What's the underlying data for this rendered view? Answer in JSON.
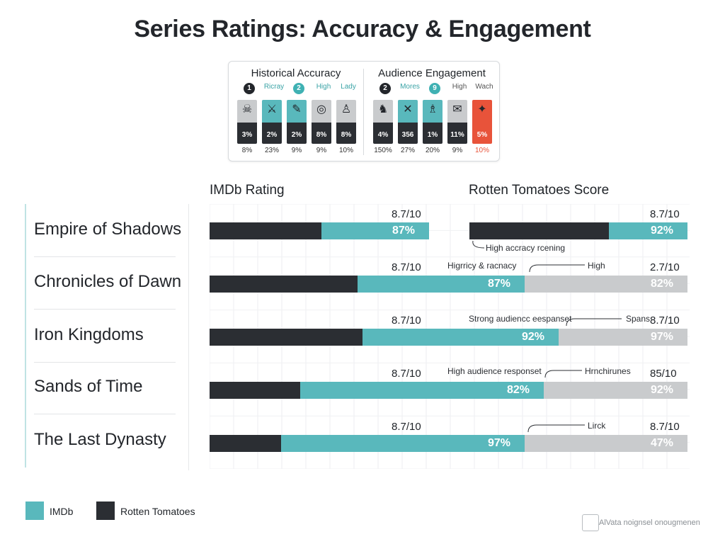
{
  "title": "Series Ratings: Accuracy & Engagement",
  "panel": {
    "groups": [
      {
        "title": "Historical Accuracy",
        "items": [
          {
            "header": "1",
            "header_style": "badge-dark",
            "icon": "mask-icon",
            "glyph": "☠",
            "tile_color": "#c9cbcd",
            "value": "3%",
            "sub": "8%"
          },
          {
            "header": "Ricray",
            "header_style": "teal",
            "icon": "warrior-icon",
            "glyph": "⚔",
            "tile_color": "#59b8bc",
            "value": "2%",
            "sub": "23%"
          },
          {
            "header": "2",
            "header_style": "badge-teal",
            "icon": "scroll-icon",
            "glyph": "✎",
            "tile_color": "#59b8bc",
            "value": "2%",
            "sub": "9%"
          },
          {
            "header": "High",
            "header_style": "teal",
            "icon": "shield-icon",
            "glyph": "◎",
            "tile_color": "#c9cbcd",
            "value": "8%",
            "sub": "9%"
          },
          {
            "header": "Lady",
            "header_style": "teal",
            "icon": "bust-icon",
            "glyph": "♙",
            "tile_color": "#c9cbcd",
            "value": "8%",
            "sub": "10%"
          }
        ]
      },
      {
        "title": "Audience Engagement",
        "items": [
          {
            "header": "2",
            "header_style": "badge-dark",
            "icon": "crowd-icon",
            "glyph": "♞",
            "tile_color": "#c9cbcd",
            "value": "4%",
            "sub": "150%"
          },
          {
            "header": "Mores",
            "header_style": "teal",
            "icon": "swords-icon",
            "glyph": "✕",
            "tile_color": "#59b8bc",
            "value": "356",
            "sub": "27%"
          },
          {
            "header": "9",
            "header_style": "badge-teal",
            "icon": "figure-icon",
            "glyph": "♗",
            "tile_color": "#59b8bc",
            "value": "1%",
            "sub": "20%"
          },
          {
            "header": "High",
            "header_style": "grey",
            "icon": "chat-icon",
            "glyph": "✉",
            "tile_color": "#c9cbcd",
            "value": "11%",
            "sub": "9%"
          },
          {
            "header": "Wach",
            "header_style": "grey",
            "icon": "dragon-icon",
            "glyph": "✦",
            "tile_color": "#e8533a",
            "value": "5%",
            "sub": "10%",
            "sub_red": true
          }
        ]
      }
    ]
  },
  "chart_data": {
    "type": "bar",
    "column_headers": [
      "IMDb Rating",
      "Rotten Tomatoes Score"
    ],
    "categories": [
      "Empire of Shadows",
      "Chronicles of Dawn",
      "Iron Kingdoms",
      "Sands of Time",
      "The Last Dynasty"
    ],
    "rows": [
      {
        "name": "Empire of Shadows",
        "imdb_score": "8.7/10",
        "rt_score": "8.7/10",
        "imdb_bar": {
          "dark": 0.51,
          "teal": 0.49,
          "grey": 0,
          "label": "87%"
        },
        "rt_bar": {
          "dark": 0.64,
          "teal": 0.36,
          "grey": 0,
          "label": "92%"
        },
        "annotations": [
          "High accracy rcening"
        ]
      },
      {
        "name": "Chronicles of Dawn",
        "imdb_score": "8.7/10",
        "rt_score": "2.7/10",
        "full_bar": {
          "dark": 0.31,
          "teal": 0.35,
          "grey": 0.34,
          "label_teal": "87%",
          "label_grey": "82%"
        },
        "annotations": [
          "Higrricy & racnacy",
          "High"
        ]
      },
      {
        "name": "Iron Kingdoms",
        "imdb_score": "8.7/10",
        "rt_score": "8.7/10",
        "full_bar": {
          "dark": 0.32,
          "teal": 0.41,
          "grey": 0.27,
          "label_teal": "92%",
          "label_grey": "97%"
        },
        "annotations": [
          "Strong audiencc eespanset",
          "Spans"
        ]
      },
      {
        "name": "Sands of Time",
        "imdb_score": "8.7/10",
        "rt_score": "85/10",
        "full_bar": {
          "dark": 0.19,
          "teal": 0.51,
          "grey": 0.3,
          "label_teal": "82%",
          "label_grey": "92%"
        },
        "annotations": [
          "High audience responset",
          "Hrnchirunes"
        ]
      },
      {
        "name": "The Last Dynasty",
        "imdb_score": "8.7/10",
        "rt_score": "8.7/10",
        "full_bar": {
          "dark": 0.15,
          "teal": 0.51,
          "grey": 0.34,
          "label_teal": "97%",
          "label_grey": "47%"
        },
        "annotations": [
          "Lirck"
        ]
      }
    ],
    "legend": [
      {
        "label": "IMDb",
        "color": "#59b8bc"
      },
      {
        "label": "Rotten Tomatoes",
        "color": "#2b2e33"
      }
    ],
    "legend_position": "bottom-left",
    "grid": true
  },
  "footer_note": "AlVata noignsel onougmenen",
  "colors": {
    "dark": "#2b2e33",
    "teal": "#59b8bc",
    "grey": "#c9cbcd",
    "accent_red": "#e8533a"
  }
}
